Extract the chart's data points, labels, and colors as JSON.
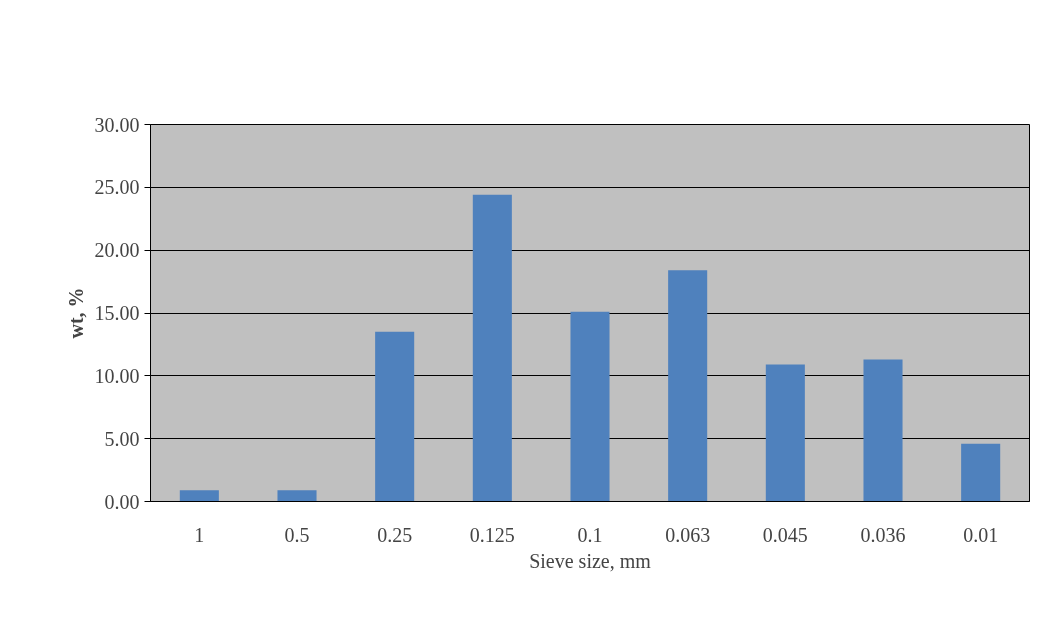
{
  "chart_data": {
    "type": "bar",
    "xlabel": "Sieve size, mm",
    "ylabel": "wt, %",
    "categories": [
      "1",
      "0.5",
      "0.25",
      "0.125",
      "0.1",
      "0.063",
      "0.045",
      "0.036",
      "0.01"
    ],
    "values": [
      0.9,
      0.9,
      13.5,
      24.4,
      15.1,
      18.4,
      10.9,
      11.3,
      4.6
    ],
    "color": "#4f81bd",
    "ylim": [
      0,
      30
    ],
    "yticks": [
      {
        "value": 0,
        "label": "0.00"
      },
      {
        "value": 5,
        "label": "5.00"
      },
      {
        "value": 10,
        "label": "10.00"
      },
      {
        "value": 15,
        "label": "15.00"
      },
      {
        "value": 20,
        "label": "20.00"
      },
      {
        "value": 25,
        "label": "25.00"
      },
      {
        "value": 30,
        "label": "30.00"
      }
    ],
    "grid": "y"
  }
}
